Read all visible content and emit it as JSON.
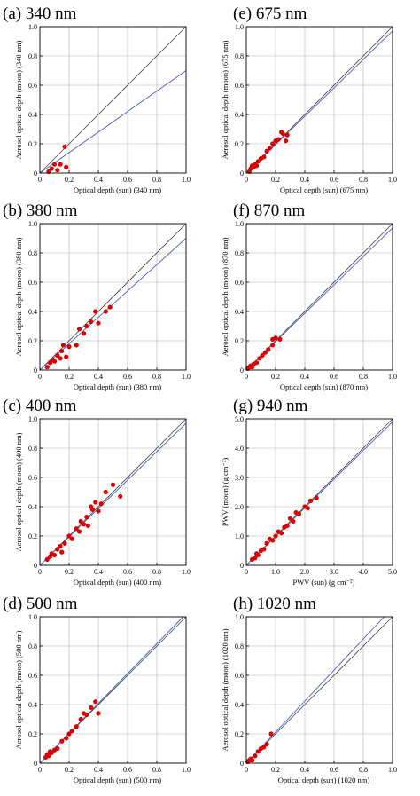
{
  "chart_data": [
    {
      "id": "a",
      "type": "scatter",
      "title": "(a)  340 nm",
      "xlabel": "Optical depth (sun)   (340 nm)",
      "ylabel": "Aerosol optical depth (moon)  (340 nm)",
      "xlim": [
        0,
        1.0
      ],
      "ylim": [
        0,
        1.0
      ],
      "xticks": [
        "0",
        "0.2",
        "0.4",
        "0.6",
        "0.8",
        "1.0"
      ],
      "yticks": [
        "0",
        "0.2",
        "0.4",
        "0.6",
        "0.8",
        "1.0"
      ],
      "grid": true,
      "one_to_one_line": true,
      "fit_slope": 0.7,
      "fit_intercept": 0.0,
      "points": [
        [
          0.06,
          0.01
        ],
        [
          0.08,
          0.03
        ],
        [
          0.1,
          0.06
        ],
        [
          0.12,
          0.02
        ],
        [
          0.14,
          0.06
        ],
        [
          0.17,
          0.18
        ],
        [
          0.18,
          0.04
        ]
      ]
    },
    {
      "id": "e",
      "type": "scatter",
      "title": "(e) 675 nm",
      "xlabel": "Optical depth (sun)   (675 nm)",
      "ylabel": "Aerosol optical depth (moon)  (675 nm)",
      "xlim": [
        0,
        1.0
      ],
      "ylim": [
        0,
        1.0
      ],
      "xticks": [
        "0",
        "0.2",
        "0.4",
        "0.6",
        "0.8",
        "1.0"
      ],
      "yticks": [
        "0",
        "0.2",
        "0.4",
        "0.6",
        "0.8",
        "1.0"
      ],
      "grid": true,
      "one_to_one_line": true,
      "fit_slope": 0.97,
      "fit_intercept": 0.0,
      "points": [
        [
          0.02,
          0.01
        ],
        [
          0.03,
          0.03
        ],
        [
          0.04,
          0.05
        ],
        [
          0.05,
          0.04
        ],
        [
          0.06,
          0.06
        ],
        [
          0.07,
          0.05
        ],
        [
          0.08,
          0.08
        ],
        [
          0.1,
          0.1
        ],
        [
          0.12,
          0.11
        ],
        [
          0.14,
          0.15
        ],
        [
          0.16,
          0.17
        ],
        [
          0.18,
          0.2
        ],
        [
          0.2,
          0.22
        ],
        [
          0.22,
          0.23
        ],
        [
          0.24,
          0.28
        ],
        [
          0.25,
          0.27
        ],
        [
          0.27,
          0.22
        ],
        [
          0.28,
          0.26
        ]
      ]
    },
    {
      "id": "b",
      "type": "scatter",
      "title": "(b) 380 nm",
      "xlabel": "Optical depth (sun)   (380 nm)",
      "ylabel": "Aerosol optical depth (moon)  (380 nm)",
      "xlim": [
        0,
        1.0
      ],
      "ylim": [
        0,
        1.0
      ],
      "xticks": [
        "0",
        "0.2",
        "0.4",
        "0.6",
        "0.8",
        "1.0"
      ],
      "yticks": [
        "0",
        "0.2",
        "0.4",
        "0.6",
        "0.8",
        "1.0"
      ],
      "grid": true,
      "one_to_one_line": true,
      "fit_slope": 0.9,
      "fit_intercept": 0.0,
      "points": [
        [
          0.05,
          0.02
        ],
        [
          0.07,
          0.05
        ],
        [
          0.09,
          0.07
        ],
        [
          0.1,
          0.06
        ],
        [
          0.12,
          0.1
        ],
        [
          0.14,
          0.08
        ],
        [
          0.15,
          0.13
        ],
        [
          0.16,
          0.17
        ],
        [
          0.18,
          0.09
        ],
        [
          0.2,
          0.16
        ],
        [
          0.25,
          0.17
        ],
        [
          0.27,
          0.28
        ],
        [
          0.3,
          0.25
        ],
        [
          0.32,
          0.3
        ],
        [
          0.35,
          0.33
        ],
        [
          0.38,
          0.4
        ],
        [
          0.4,
          0.32
        ],
        [
          0.45,
          0.4
        ],
        [
          0.48,
          0.43
        ]
      ]
    },
    {
      "id": "f",
      "type": "scatter",
      "title": "(f)  870 nm",
      "xlabel": "Optical depth (sun)   (870 nm)",
      "ylabel": "Aerosol optical depth (moon)  (870 nm)",
      "xlim": [
        0,
        1.0
      ],
      "ylim": [
        0,
        1.0
      ],
      "xticks": [
        "0",
        "0.2",
        "0.4",
        "0.6",
        "0.8",
        "1.0"
      ],
      "yticks": [
        "0",
        "0.2",
        "0.4",
        "0.6",
        "0.8",
        "1.0"
      ],
      "grid": true,
      "one_to_one_line": true,
      "fit_slope": 0.97,
      "fit_intercept": 0.0,
      "points": [
        [
          0.01,
          0.01
        ],
        [
          0.02,
          0.02
        ],
        [
          0.03,
          0.03
        ],
        [
          0.04,
          0.02
        ],
        [
          0.05,
          0.04
        ],
        [
          0.07,
          0.05
        ],
        [
          0.09,
          0.08
        ],
        [
          0.11,
          0.1
        ],
        [
          0.13,
          0.12
        ],
        [
          0.15,
          0.14
        ],
        [
          0.18,
          0.17
        ],
        [
          0.18,
          0.21
        ],
        [
          0.2,
          0.22
        ],
        [
          0.23,
          0.21
        ]
      ]
    },
    {
      "id": "c",
      "type": "scatter",
      "title": "(c)  400 nm",
      "xlabel": "Optical depth (sun)   (400 nm)",
      "ylabel": "Aerosol optical depth (moon)   (400 nm)",
      "xlim": [
        0,
        1.0
      ],
      "ylim": [
        0,
        1.0
      ],
      "xticks": [
        "0",
        "0.2",
        "0.4",
        "0.6",
        "0.8",
        "1.0"
      ],
      "yticks": [
        "0",
        "0.2",
        "0.4",
        "0.6",
        "0.8",
        "1.0"
      ],
      "grid": true,
      "one_to_one_line": true,
      "fit_slope": 0.97,
      "fit_intercept": 0.0,
      "points": [
        [
          0.05,
          0.04
        ],
        [
          0.07,
          0.06
        ],
        [
          0.08,
          0.08
        ],
        [
          0.1,
          0.07
        ],
        [
          0.12,
          0.11
        ],
        [
          0.14,
          0.13
        ],
        [
          0.15,
          0.09
        ],
        [
          0.17,
          0.15
        ],
        [
          0.2,
          0.2
        ],
        [
          0.22,
          0.18
        ],
        [
          0.25,
          0.25
        ],
        [
          0.27,
          0.23
        ],
        [
          0.28,
          0.3
        ],
        [
          0.3,
          0.28
        ],
        [
          0.32,
          0.33
        ],
        [
          0.33,
          0.27
        ],
        [
          0.35,
          0.4
        ],
        [
          0.36,
          0.38
        ],
        [
          0.38,
          0.43
        ],
        [
          0.4,
          0.37
        ],
        [
          0.42,
          0.42
        ],
        [
          0.45,
          0.5
        ],
        [
          0.5,
          0.55
        ],
        [
          0.55,
          0.47
        ]
      ]
    },
    {
      "id": "g",
      "type": "scatter",
      "title": "(g)  940 nm",
      "xlabel": "PWV (sun)  (g cm⁻²)",
      "ylabel": "PWV (moon)  (g cm⁻²)",
      "xlim": [
        0,
        5.0
      ],
      "ylim": [
        0,
        5.0
      ],
      "xticks": [
        "0",
        "1.0",
        "2.0",
        "3.0",
        "4.0",
        "5.0"
      ],
      "yticks": [
        "0",
        "1.0",
        "2.0",
        "3.0",
        "4.0",
        "5.0"
      ],
      "grid": true,
      "one_to_one_line": true,
      "fit_slope": 0.98,
      "fit_intercept": 0.0,
      "points": [
        [
          0.2,
          0.2
        ],
        [
          0.3,
          0.25
        ],
        [
          0.35,
          0.4
        ],
        [
          0.4,
          0.35
        ],
        [
          0.5,
          0.5
        ],
        [
          0.6,
          0.55
        ],
        [
          0.7,
          0.75
        ],
        [
          0.8,
          0.9
        ],
        [
          0.9,
          0.85
        ],
        [
          1.0,
          1.0
        ],
        [
          1.1,
          1.15
        ],
        [
          1.2,
          1.1
        ],
        [
          1.3,
          1.3
        ],
        [
          1.4,
          1.35
        ],
        [
          1.5,
          1.6
        ],
        [
          1.6,
          1.5
        ],
        [
          1.7,
          1.8
        ],
        [
          1.8,
          1.75
        ],
        [
          2.0,
          2.0
        ],
        [
          2.1,
          1.95
        ],
        [
          2.2,
          2.2
        ],
        [
          2.4,
          2.3
        ]
      ]
    },
    {
      "id": "d",
      "type": "scatter",
      "title": "(d)  500 nm",
      "xlabel": "Optical depth (sun)   (500 nm)",
      "ylabel": "Aerosol optical depth (moon)   (500 nm)",
      "xlim": [
        0,
        1.0
      ],
      "ylim": [
        0,
        1.0
      ],
      "xticks": [
        "0",
        "0.2",
        "0.4",
        "0.6",
        "0.8",
        "1.0"
      ],
      "yticks": [
        "0",
        "0.2",
        "0.4",
        "0.6",
        "0.8",
        "1.0"
      ],
      "grid": true,
      "one_to_one_line": true,
      "fit_slope": 1.02,
      "fit_intercept": 0.0,
      "points": [
        [
          0.04,
          0.04
        ],
        [
          0.05,
          0.06
        ],
        [
          0.06,
          0.05
        ],
        [
          0.07,
          0.08
        ],
        [
          0.08,
          0.07
        ],
        [
          0.1,
          0.09
        ],
        [
          0.12,
          0.1
        ],
        [
          0.15,
          0.15
        ],
        [
          0.18,
          0.17
        ],
        [
          0.2,
          0.2
        ],
        [
          0.22,
          0.22
        ],
        [
          0.25,
          0.25
        ],
        [
          0.28,
          0.3
        ],
        [
          0.3,
          0.34
        ],
        [
          0.32,
          0.33
        ],
        [
          0.35,
          0.38
        ],
        [
          0.38,
          0.42
        ],
        [
          0.4,
          0.34
        ]
      ]
    },
    {
      "id": "h",
      "type": "scatter",
      "title": "(h)  1020 nm",
      "xlabel": "Optical depth (sun)   (1020 nm)",
      "ylabel": "Aerosol optical depth (moon)  (1020 nm)",
      "xlim": [
        0,
        1.0
      ],
      "ylim": [
        0,
        1.0
      ],
      "xticks": [
        "0",
        "0.2",
        "0.4",
        "0.6",
        "0.8",
        "1.0"
      ],
      "yticks": [
        "0",
        "0.2",
        "0.4",
        "0.6",
        "0.8",
        "1.0"
      ],
      "grid": true,
      "one_to_one_line": true,
      "fit_slope": 1.06,
      "fit_intercept": 0.0,
      "points": [
        [
          0.01,
          0.01
        ],
        [
          0.02,
          0.02
        ],
        [
          0.03,
          0.03
        ],
        [
          0.04,
          0.02
        ],
        [
          0.06,
          0.05
        ],
        [
          0.08,
          0.08
        ],
        [
          0.1,
          0.1
        ],
        [
          0.12,
          0.11
        ],
        [
          0.14,
          0.13
        ],
        [
          0.17,
          0.2
        ]
      ]
    }
  ],
  "colors": {
    "points": "#d80000",
    "fit_line": "#4a5cc7",
    "one_to_one_line": "#444444",
    "grid": "#b3b3b3"
  }
}
